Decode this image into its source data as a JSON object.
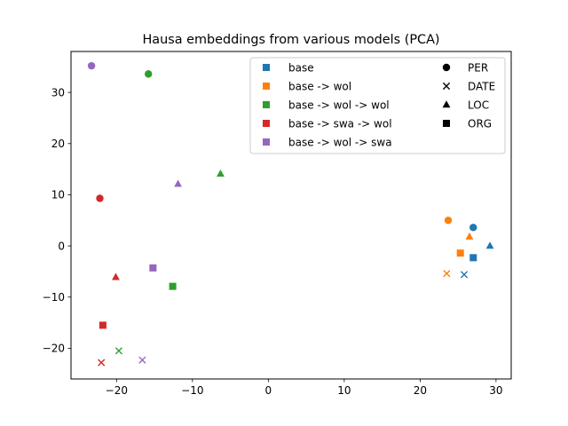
{
  "chart_data": {
    "type": "scatter",
    "title": "Hausa embeddings from various models (PCA)",
    "xlabel": "",
    "ylabel": "",
    "xlim": [
      -26,
      32
    ],
    "ylim": [
      -26,
      38
    ],
    "xticks": [
      -20,
      -10,
      0,
      10,
      20,
      30
    ],
    "yticks": [
      -20,
      -10,
      0,
      10,
      20,
      30
    ],
    "grid": false,
    "legend_position": "top-right",
    "series": [
      {
        "name": "base",
        "color": "#1f77b4",
        "points": [
          {
            "label": "PER",
            "x": 27.0,
            "y": 3.6
          },
          {
            "label": "DATE",
            "x": 25.8,
            "y": -5.6
          },
          {
            "label": "LOC",
            "x": 29.2,
            "y": 0.0
          },
          {
            "label": "ORG",
            "x": 27.0,
            "y": -2.3
          }
        ]
      },
      {
        "name": "base -> wol",
        "color": "#ff7f0e",
        "points": [
          {
            "label": "PER",
            "x": 23.7,
            "y": 5.0
          },
          {
            "label": "DATE",
            "x": 23.5,
            "y": -5.4
          },
          {
            "label": "LOC",
            "x": 26.5,
            "y": 1.8
          },
          {
            "label": "ORG",
            "x": 25.3,
            "y": -1.4
          }
        ]
      },
      {
        "name": "base -> wol -> wol",
        "color": "#2ca02c",
        "points": [
          {
            "label": "PER",
            "x": -15.8,
            "y": 33.6
          },
          {
            "label": "DATE",
            "x": -19.7,
            "y": -20.5
          },
          {
            "label": "LOC",
            "x": -6.3,
            "y": 14.1
          },
          {
            "label": "ORG",
            "x": -12.6,
            "y": -7.9
          }
        ]
      },
      {
        "name": "base -> swa -> wol",
        "color": "#d62728",
        "points": [
          {
            "label": "PER",
            "x": -22.2,
            "y": 9.3
          },
          {
            "label": "DATE",
            "x": -22.0,
            "y": -22.8
          },
          {
            "label": "LOC",
            "x": -20.1,
            "y": -6.1
          },
          {
            "label": "ORG",
            "x": -21.8,
            "y": -15.5
          }
        ]
      },
      {
        "name": "base -> wol -> swa",
        "color": "#9467bd",
        "points": [
          {
            "label": "PER",
            "x": -23.3,
            "y": 35.2
          },
          {
            "label": "DATE",
            "x": -16.6,
            "y": -22.3
          },
          {
            "label": "LOC",
            "x": -11.9,
            "y": 12.1
          },
          {
            "label": "ORG",
            "x": -15.2,
            "y": -4.3
          }
        ]
      }
    ],
    "marker_legend": [
      {
        "label": "PER",
        "marker": "circle"
      },
      {
        "label": "DATE",
        "marker": "x"
      },
      {
        "label": "LOC",
        "marker": "triangle"
      },
      {
        "label": "ORG",
        "marker": "square"
      }
    ]
  }
}
